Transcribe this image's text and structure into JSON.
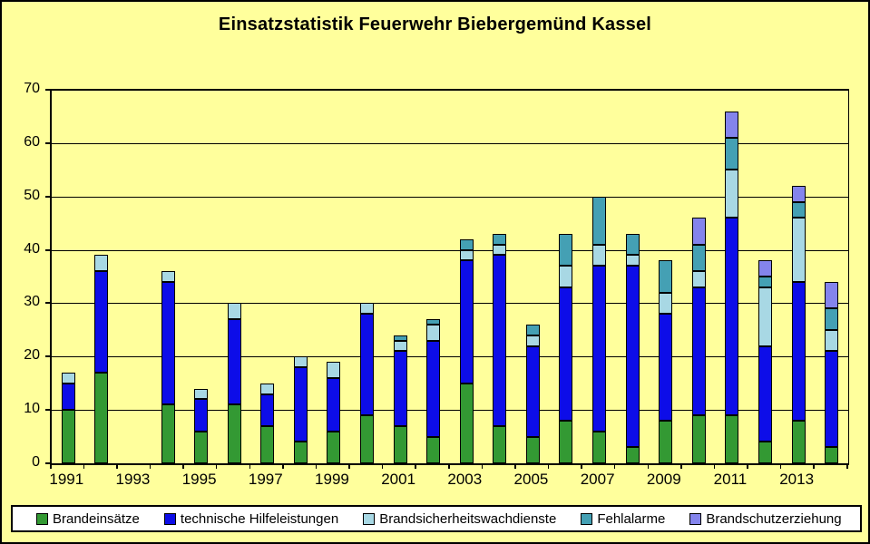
{
  "chart_data": {
    "type": "bar",
    "stacked": true,
    "title": "Einsatzstatistik Feuerwehr Biebergemünd Kassel",
    "categories": [
      "1991",
      "1992",
      "1993",
      "1994",
      "1995",
      "1996",
      "1997",
      "1998",
      "1999",
      "2000",
      "2001",
      "2002",
      "2003",
      "2004",
      "2005",
      "2006",
      "2007",
      "2008",
      "2009",
      "2010",
      "2011",
      "2012",
      "2013",
      "2014"
    ],
    "x_axis_labels_shown": [
      "1991",
      "1993",
      "1995",
      "1997",
      "1999",
      "2001",
      "2003",
      "2005",
      "2007",
      "2009",
      "2011",
      "2013"
    ],
    "ylim": [
      0,
      70
    ],
    "yticks": [
      0,
      10,
      20,
      30,
      40,
      50,
      60,
      70
    ],
    "grid": true,
    "legend_position": "bottom",
    "series": [
      {
        "name": "Brandeinsätze",
        "color": "#339933",
        "values": [
          10,
          17,
          0,
          11,
          6,
          11,
          7,
          4,
          6,
          9,
          7,
          5,
          15,
          7,
          5,
          8,
          6,
          3,
          8,
          9,
          9,
          4,
          8,
          3
        ]
      },
      {
        "name": "technische Hilfeleistungen",
        "color": "#0D0DE8",
        "values": [
          5,
          19,
          0,
          23,
          6,
          16,
          6,
          14,
          10,
          19,
          14,
          18,
          23,
          32,
          17,
          25,
          31,
          34,
          20,
          24,
          37,
          18,
          26,
          18
        ]
      },
      {
        "name": "Brandsicherheitswachdienste",
        "color": "#A8D8E4",
        "values": [
          2,
          3,
          0,
          2,
          2,
          3,
          2,
          2,
          3,
          2,
          2,
          3,
          2,
          2,
          2,
          4,
          4,
          2,
          4,
          3,
          9,
          11,
          12,
          4
        ]
      },
      {
        "name": "Fehlalarme",
        "color": "#44A0B4",
        "values": [
          0,
          0,
          0,
          0,
          0,
          0,
          0,
          0,
          0,
          0,
          1,
          1,
          2,
          2,
          2,
          6,
          9,
          4,
          6,
          5,
          6,
          2,
          3,
          4
        ]
      },
      {
        "name": "Brandschutzerziehung",
        "color": "#8484EC",
        "values": [
          0,
          0,
          0,
          0,
          0,
          0,
          0,
          0,
          0,
          0,
          0,
          0,
          0,
          0,
          0,
          0,
          0,
          0,
          0,
          5,
          5,
          3,
          3,
          5
        ]
      }
    ],
    "totals": [
      17,
      39,
      0,
      36,
      14,
      30,
      15,
      20,
      19,
      30,
      24,
      27,
      42,
      43,
      26,
      43,
      50,
      43,
      38,
      46,
      66,
      38,
      52,
      34
    ],
    "background_color": "#FFFF9C",
    "plot_border_color": "#000000",
    "legend_background": "#FFFFFF"
  }
}
